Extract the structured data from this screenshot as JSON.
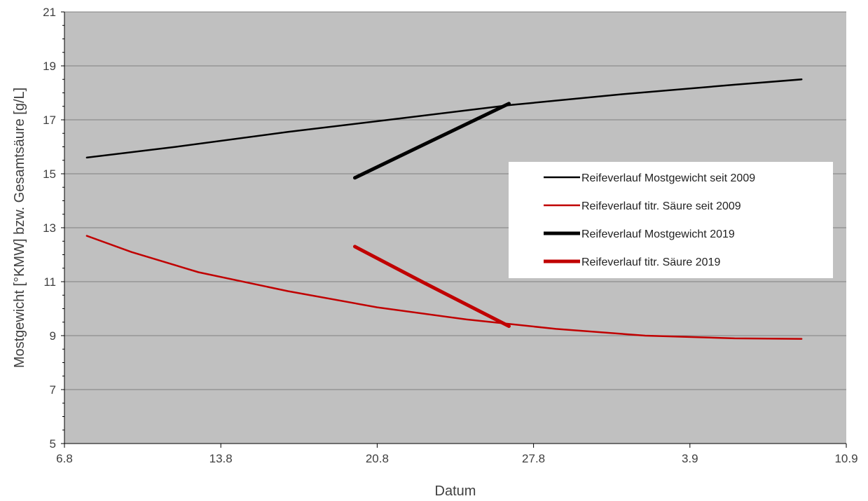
{
  "chart_data": {
    "type": "line",
    "title": "",
    "xlabel": "Datum",
    "ylabel": "Mostgewicht [°KMW] bzw. Gesamtsäure [g/L]",
    "x_ticks": [
      "6.8",
      "13.8",
      "20.8",
      "27.8",
      "3.9",
      "10.9"
    ],
    "xlim": [
      0,
      35
    ],
    "ylim": [
      5,
      21
    ],
    "y_ticks": [
      5,
      7,
      9,
      11,
      13,
      15,
      17,
      19,
      21
    ],
    "grid": "horizontal",
    "plot_background": "#c0c0c0",
    "legend_position": "right-middle",
    "series": [
      {
        "name": "Reifeverlauf Mostgewicht seit 2009",
        "color": "#000000",
        "style": "thin",
        "x": [
          1,
          5,
          10,
          15,
          20,
          25,
          30,
          33
        ],
        "y": [
          15.6,
          16.0,
          16.55,
          17.05,
          17.55,
          17.95,
          18.3,
          18.5
        ]
      },
      {
        "name": "Reifeverlauf titr. Säure seit 2009",
        "color": "#c00000",
        "style": "thin",
        "x": [
          1,
          3,
          6,
          10,
          14,
          18,
          22,
          26,
          30,
          33
        ],
        "y": [
          12.7,
          12.1,
          11.35,
          10.65,
          10.05,
          9.6,
          9.25,
          9.0,
          8.9,
          8.88
        ]
      },
      {
        "name": "Reifeverlauf Mostgewicht 2019",
        "color": "#000000",
        "style": "thick",
        "x": [
          13,
          16,
          19.9
        ],
        "y": [
          14.85,
          16.05,
          17.6
        ]
      },
      {
        "name": "Reifeverlauf titr. Säure 2019",
        "color": "#c00000",
        "style": "thick",
        "x": [
          13,
          16,
          19.9
        ],
        "y": [
          12.3,
          11.0,
          9.35
        ]
      }
    ]
  }
}
